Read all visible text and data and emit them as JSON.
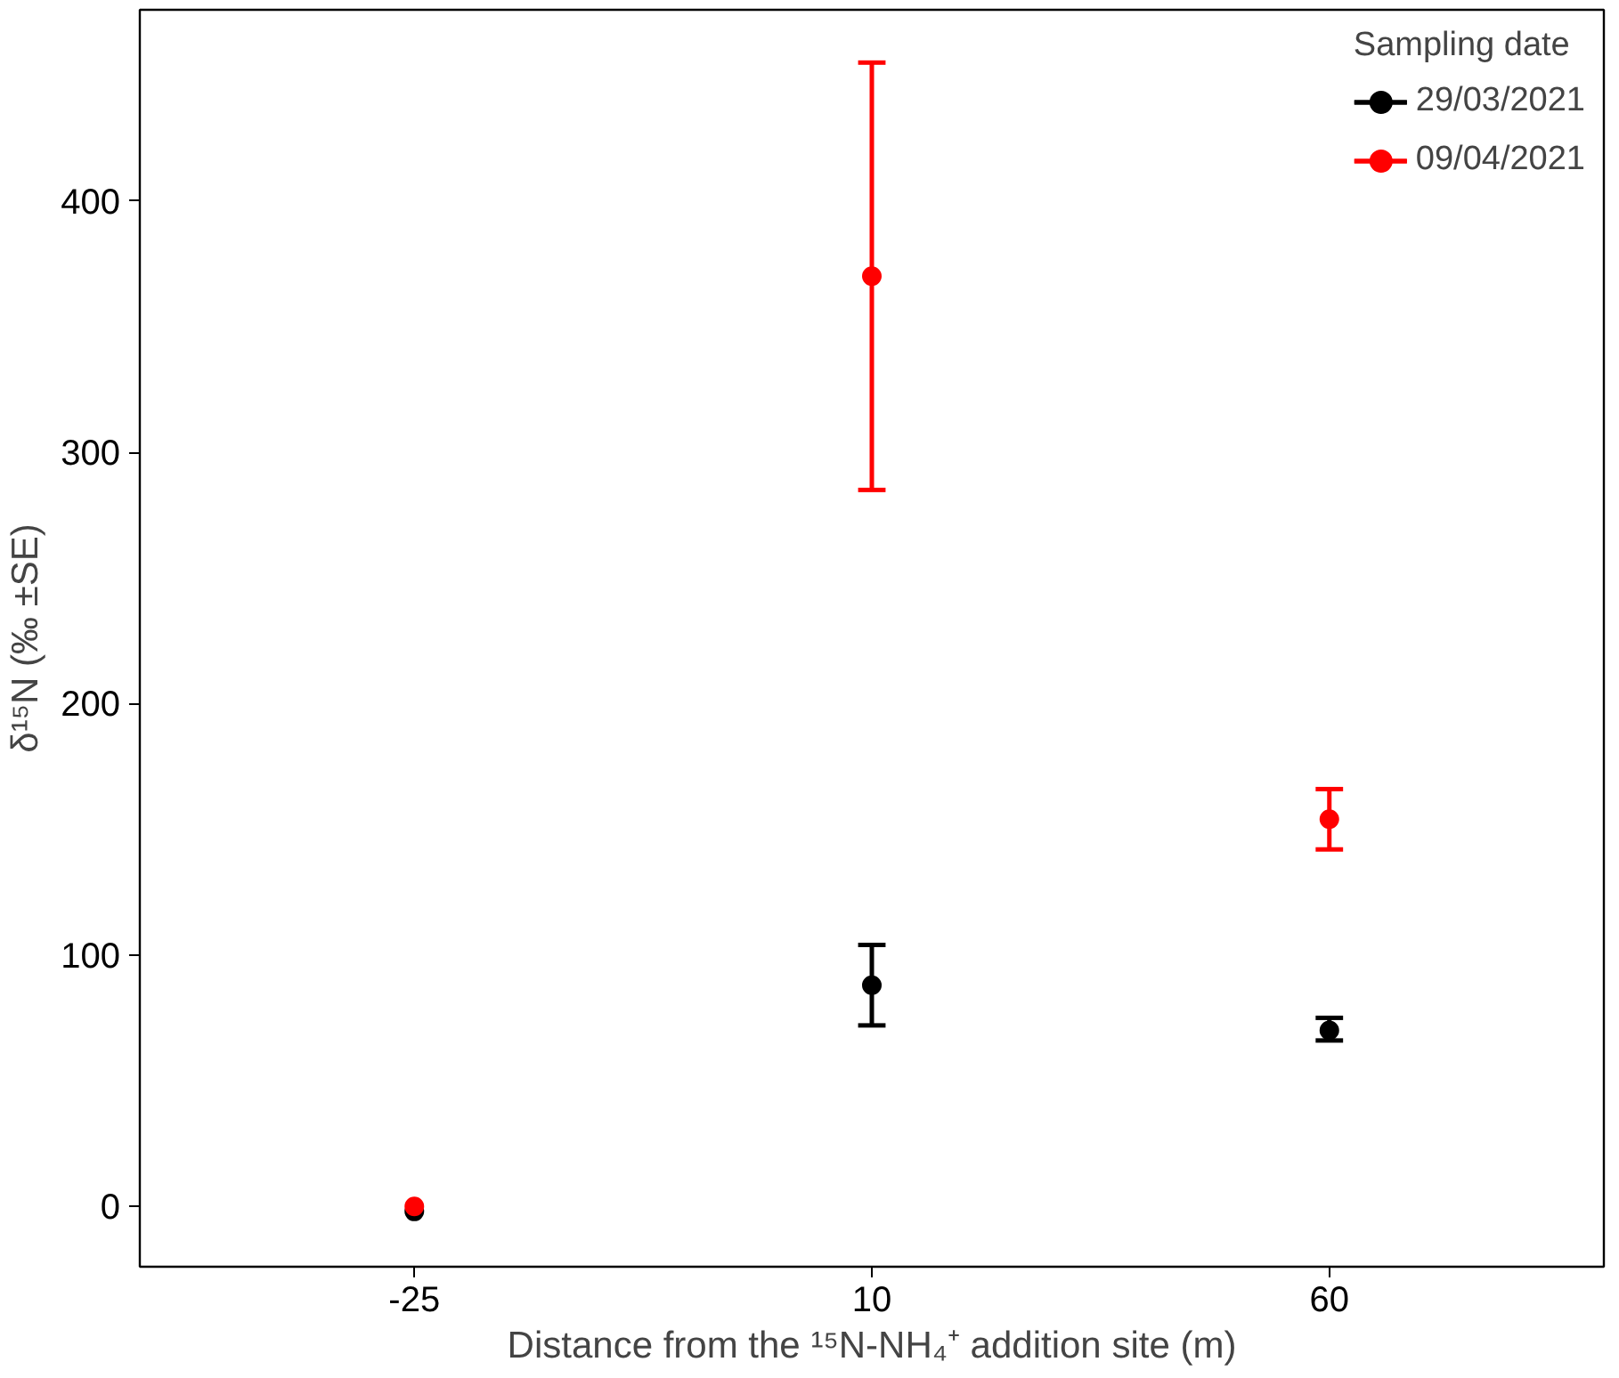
{
  "chart_data": {
    "type": "scatter",
    "xlabel": "Distance from the ¹⁵N-NH₄⁺ addition site (m)",
    "ylabel": "δ¹⁵N (‰ ±SE)",
    "legend_title": "Sampling date",
    "categories": [
      "-25",
      "10",
      "60"
    ],
    "series": [
      {
        "name": "29/03/2021",
        "color": "#000000",
        "values": [
          -2,
          88,
          70
        ],
        "errors": [
          null,
          [
            72,
            104
          ],
          [
            66,
            75
          ]
        ]
      },
      {
        "name": "09/04/2021",
        "color": "#ff0000",
        "values": [
          0,
          370,
          154
        ],
        "errors": [
          null,
          [
            285,
            455
          ],
          [
            142,
            166
          ]
        ]
      }
    ],
    "ylim": [
      -24,
      476
    ],
    "yticks": [
      0,
      100,
      200,
      300,
      400
    ],
    "grid": false,
    "legend": "top right",
    "marker": "circle"
  }
}
